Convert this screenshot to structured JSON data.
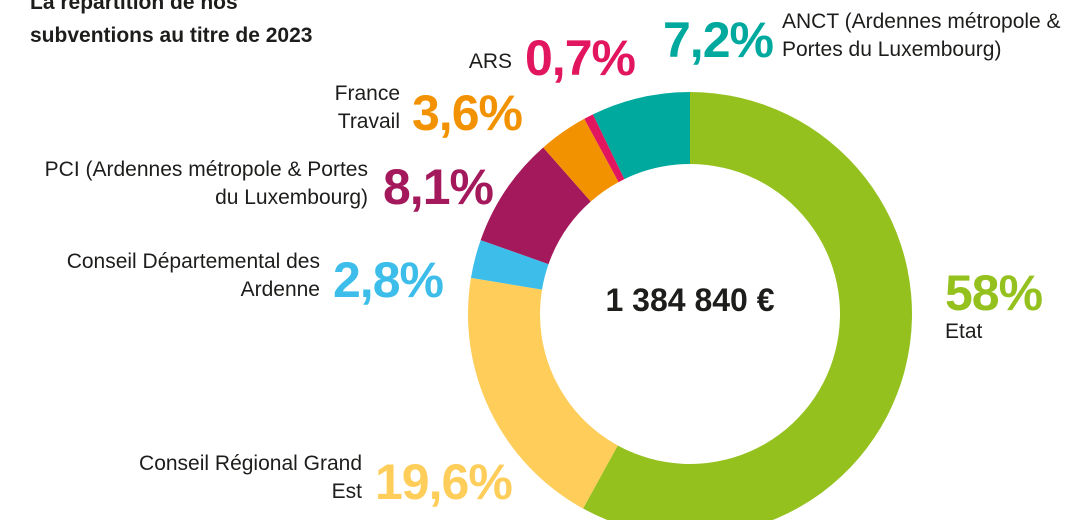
{
  "chart_data": {
    "type": "donut",
    "title": "La répartition de nos subventions au titre de 2023",
    "center_label": "1 384 840 €",
    "categories": [
      "Etat",
      "Conseil Régional Grand Est",
      "Conseil Départemental des Ardenne",
      "PCI (Ardennes métropole & Portes du Luxembourg)",
      "France Travail",
      "ARS",
      "ANCT (Ardennes métropole & Portes du Luxembourg)"
    ],
    "values": [
      58,
      19.6,
      2.8,
      8.1,
      3.6,
      0.7,
      7.2
    ],
    "value_labels": [
      "58%",
      "19,6%",
      "2,8%",
      "8,1%",
      "3,6%",
      "0,7%",
      "7,2%"
    ],
    "colors": [
      "#95c11f",
      "#fecd5a",
      "#3dbde9",
      "#a3195b",
      "#f39200",
      "#e2165f",
      "#00a99d"
    ]
  }
}
